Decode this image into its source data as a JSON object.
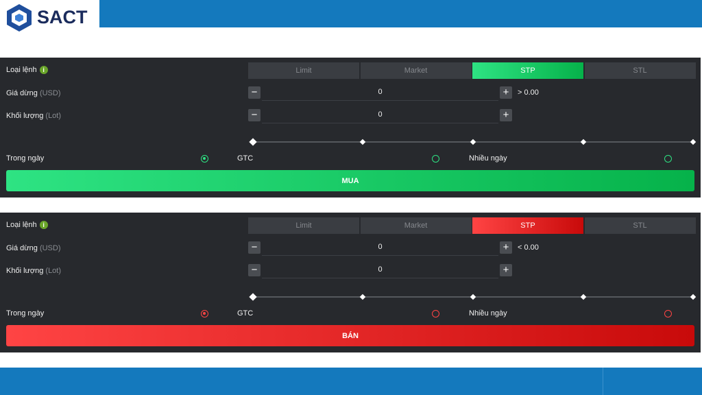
{
  "header": {
    "logo": "SACT"
  },
  "panels": [
    {
      "order_type_label": "Loại lệnh",
      "info_icon": "i",
      "tabs": [
        "Limit",
        "Market",
        "STP",
        "STL"
      ],
      "active_tab": 2,
      "stop_price_label": "Giá dừng",
      "stop_price_unit": "(USD)",
      "stop_price_value": "0",
      "stop_price_condition": "> 0.00",
      "volume_label": "Khối lượng",
      "volume_unit": "(Lot)",
      "volume_value": "0",
      "validity_options": [
        "Trong ngày",
        "GTC",
        "Nhiều ngày"
      ],
      "selected_validity": 0,
      "submit_button": "MUA",
      "colors": [
        "#2ee383",
        "#06b24a"
      ]
    },
    {
      "order_type_label": "Loại lệnh",
      "info_icon": "i",
      "tabs": [
        "Limit",
        "Market",
        "STP",
        "STL"
      ],
      "active_tab": 2,
      "stop_price_label": "Giá dừng",
      "stop_price_unit": "(USD)",
      "stop_price_value": "0",
      "stop_price_condition": "< 0.00",
      "volume_label": "Khối lượng",
      "volume_unit": "(Lot)",
      "volume_value": "0",
      "validity_options": [
        "Trong ngày",
        "GTC",
        "Nhiều ngày"
      ],
      "selected_validity": 0,
      "submit_button": "BÁN",
      "colors": [
        "#ff4444",
        "#c80a0a"
      ]
    }
  ]
}
